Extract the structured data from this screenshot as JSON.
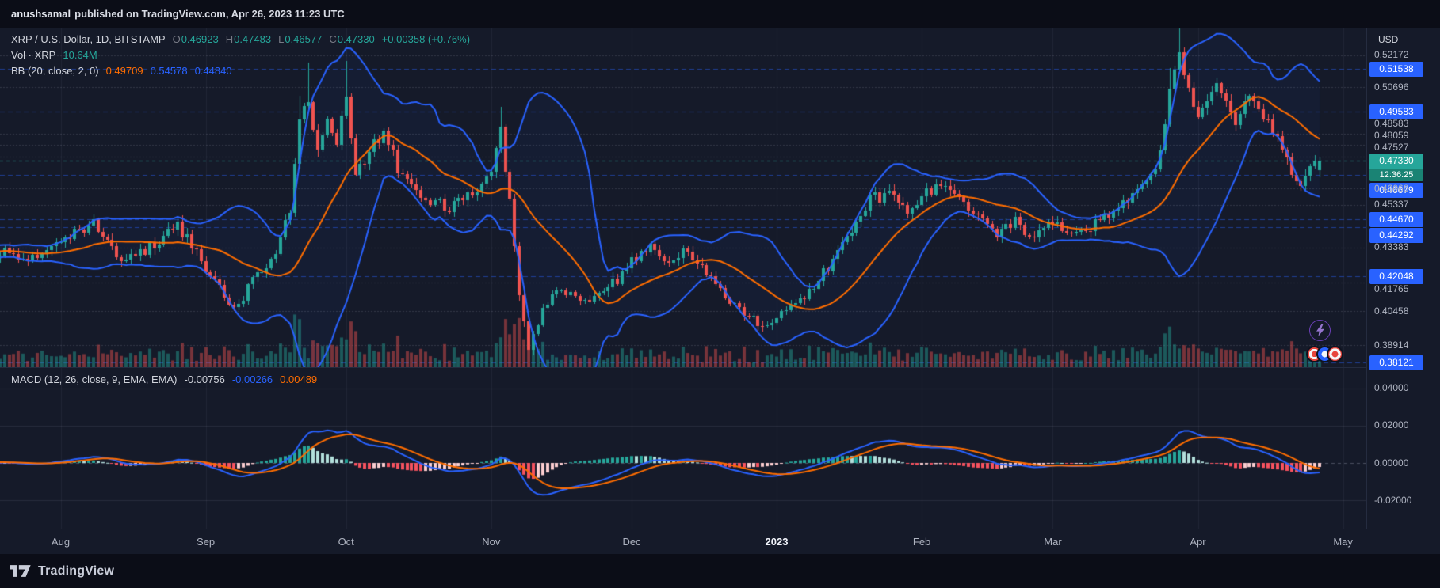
{
  "header": {
    "publisher_name": "anushsamal",
    "publisher_rest": "published on TradingView.com, Apr 26, 2023 11:23 UTC"
  },
  "legend": {
    "symbol": "XRP / U.S. Dollar, 1D, BITSTAMP",
    "ohlc": [
      {
        "label": "O",
        "value": "0.46923"
      },
      {
        "label": "H",
        "value": "0.47483"
      },
      {
        "label": "L",
        "value": "0.46577"
      },
      {
        "label": "C",
        "value": "0.47330"
      }
    ],
    "change": "+0.00358 (+0.76%)",
    "volume_label": "Vol · XRP",
    "volume_value": "10.64M",
    "bb_label": "BB (20, close, 2, 0)",
    "bb": [
      {
        "text": "0.49709",
        "color": "#ff6d00"
      },
      {
        "text": "0.54578",
        "color": "#2962ff"
      },
      {
        "text": "0.44840",
        "color": "#2962ff"
      }
    ]
  },
  "macd": {
    "label": "MACD (12, 26, close, 9, EMA, EMA)",
    "values": [
      {
        "text": "-0.00756",
        "color": "#d1d4dc"
      },
      {
        "text": "-0.00266",
        "color": "#2962ff"
      },
      {
        "text": "0.00489",
        "color": "#ff6d00"
      }
    ],
    "axis": [
      "0.04000",
      "0.02000",
      "0.00000",
      "-0.02000"
    ]
  },
  "price_axis": {
    "currency": "USD",
    "labels": [
      {
        "text": "0.52172",
        "type": "plain"
      },
      {
        "text": "0.51538",
        "type": "level"
      },
      {
        "text": "0.50696",
        "type": "plain"
      },
      {
        "text": "0.49583",
        "type": "level"
      },
      {
        "text": "0.48583",
        "type": "plain"
      },
      {
        "text": "0.48059",
        "type": "plain"
      },
      {
        "text": "0.47527",
        "type": "plain"
      },
      {
        "text": "0.46679",
        "type": "level"
      },
      {
        "text": "0.46068",
        "type": "plain"
      },
      {
        "text": "0.45337",
        "type": "plain"
      },
      {
        "text": "0.44670",
        "type": "level"
      },
      {
        "text": "0.44292",
        "type": "level"
      },
      {
        "text": "0.43383",
        "type": "plain"
      },
      {
        "text": "0.42048",
        "type": "level"
      },
      {
        "text": "0.41765",
        "type": "plain"
      },
      {
        "text": "0.40458",
        "type": "plain"
      },
      {
        "text": "0.38914",
        "type": "plain"
      },
      {
        "text": "0.38121",
        "type": "level"
      }
    ],
    "current": {
      "text": "0.47330",
      "countdown": "12:36:25"
    }
  },
  "footer": {
    "brand": "TradingView"
  },
  "colors": {
    "up": "#26a69a",
    "down": "#ef5350",
    "bb_band": "#2962ff",
    "bb_basis": "#ff6d00",
    "macd_line": "#2962ff",
    "signal_line": "#ff6d00",
    "hist_grow_up": "#26a69a",
    "hist_fade_up": "#b2dfdb",
    "hist_grow_down": "#f7525f",
    "hist_fade_down": "#fbcdcf",
    "level": "#2962ff",
    "current_bg": "#26a69a",
    "countdown_bg": "#1a8374",
    "axis_text": "#aeb3c0",
    "chart_bg": "#151a29",
    "panel_bg": "#0b0d17",
    "text": "#d1d4dc",
    "muted": "#787b86"
  },
  "chart_data": {
    "type": "candlestick",
    "symbol": "XRP/USD",
    "exchange": "BITSTAMP",
    "interval": "1D",
    "title": "XRP / U.S. Dollar, 1D, BITSTAMP",
    "date_range": [
      "Jul 2022",
      "May 2023"
    ],
    "visible_price_range": [
      0.379,
      0.534
    ],
    "ohlc_last": {
      "open": 0.46923,
      "high": 0.47483,
      "low": 0.46577,
      "close": 0.4733,
      "change": 0.00358,
      "change_pct": 0.76
    },
    "volume_last_millions": 10.64,
    "indicators": [
      "Volume",
      "BB (20, close, 2, 0)",
      "MACD (12, 26, close, 9, EMA, EMA)"
    ],
    "bollinger": {
      "length": 20,
      "source": "close",
      "stdev": 2,
      "offset": 0,
      "basis": 0.49709,
      "upper": 0.54578,
      "lower": 0.4484
    },
    "macd_values": {
      "fast": 12,
      "slow": 26,
      "signal": 9,
      "histogram": -0.00756,
      "macd": -0.00266,
      "signal_value": 0.00489,
      "axis_ticks": [
        0.04,
        0.02,
        0.0,
        -0.02
      ]
    },
    "horizontal_levels": [
      0.51538,
      0.49583,
      0.46679,
      0.4467,
      0.44292,
      0.42048,
      0.38121
    ],
    "months": [
      {
        "label": "Aug",
        "day": 13
      },
      {
        "label": "Sep",
        "day": 44
      },
      {
        "label": "Oct",
        "day": 74
      },
      {
        "label": "Nov",
        "day": 105
      },
      {
        "label": "Dec",
        "day": 135
      },
      {
        "label": "2023",
        "day": 166,
        "emphasis": true
      },
      {
        "label": "Feb",
        "day": 197
      },
      {
        "label": "Mar",
        "day": 225
      },
      {
        "label": "Apr",
        "day": 256
      },
      {
        "label": "May",
        "day": 287
      }
    ],
    "price_keyframes": [
      [
        0,
        0.432
      ],
      [
        6,
        0.427
      ],
      [
        13,
        0.437
      ],
      [
        20,
        0.444
      ],
      [
        26,
        0.428
      ],
      [
        32,
        0.434
      ],
      [
        38,
        0.444
      ],
      [
        44,
        0.424
      ],
      [
        50,
        0.405
      ],
      [
        54,
        0.418
      ],
      [
        58,
        0.427
      ],
      [
        62,
        0.45
      ],
      [
        64,
        0.49
      ],
      [
        66,
        0.503
      ],
      [
        68,
        0.476
      ],
      [
        70,
        0.49
      ],
      [
        72,
        0.483
      ],
      [
        74,
        0.5
      ],
      [
        76,
        0.468
      ],
      [
        79,
        0.478
      ],
      [
        82,
        0.487
      ],
      [
        85,
        0.47
      ],
      [
        88,
        0.462
      ],
      [
        92,
        0.455
      ],
      [
        96,
        0.452
      ],
      [
        100,
        0.459
      ],
      [
        103,
        0.462
      ],
      [
        105,
        0.468
      ],
      [
        107,
        0.487
      ],
      [
        109,
        0.455
      ],
      [
        111,
        0.412
      ],
      [
        113,
        0.386
      ],
      [
        116,
        0.405
      ],
      [
        120,
        0.416
      ],
      [
        124,
        0.408
      ],
      [
        128,
        0.413
      ],
      [
        132,
        0.419
      ],
      [
        135,
        0.428
      ],
      [
        139,
        0.435
      ],
      [
        143,
        0.428
      ],
      [
        147,
        0.432
      ],
      [
        151,
        0.422
      ],
      [
        155,
        0.412
      ],
      [
        159,
        0.404
      ],
      [
        163,
        0.398
      ],
      [
        166,
        0.403
      ],
      [
        170,
        0.408
      ],
      [
        174,
        0.416
      ],
      [
        178,
        0.428
      ],
      [
        182,
        0.443
      ],
      [
        186,
        0.456
      ],
      [
        190,
        0.458
      ],
      [
        194,
        0.45
      ],
      [
        197,
        0.458
      ],
      [
        201,
        0.462
      ],
      [
        205,
        0.455
      ],
      [
        209,
        0.447
      ],
      [
        213,
        0.44
      ],
      [
        217,
        0.446
      ],
      [
        221,
        0.438
      ],
      [
        225,
        0.445
      ],
      [
        229,
        0.44
      ],
      [
        233,
        0.443
      ],
      [
        237,
        0.449
      ],
      [
        241,
        0.456
      ],
      [
        245,
        0.463
      ],
      [
        248,
        0.476
      ],
      [
        250,
        0.508
      ],
      [
        252,
        0.524
      ],
      [
        254,
        0.506
      ],
      [
        256,
        0.496
      ],
      [
        258,
        0.503
      ],
      [
        260,
        0.508
      ],
      [
        262,
        0.5
      ],
      [
        264,
        0.492
      ],
      [
        266,
        0.498
      ],
      [
        268,
        0.503
      ],
      [
        270,
        0.495
      ],
      [
        272,
        0.487
      ],
      [
        274,
        0.477
      ],
      [
        276,
        0.467
      ],
      [
        278,
        0.462
      ],
      [
        280,
        0.469
      ],
      [
        282,
        0.4733
      ]
    ],
    "wick_spikes": {
      "64": 0.01,
      "66": 0.017,
      "74": 0.014,
      "107": 0.008,
      "113": -0.007,
      "250": 0.006,
      "252": 0.008
    }
  }
}
